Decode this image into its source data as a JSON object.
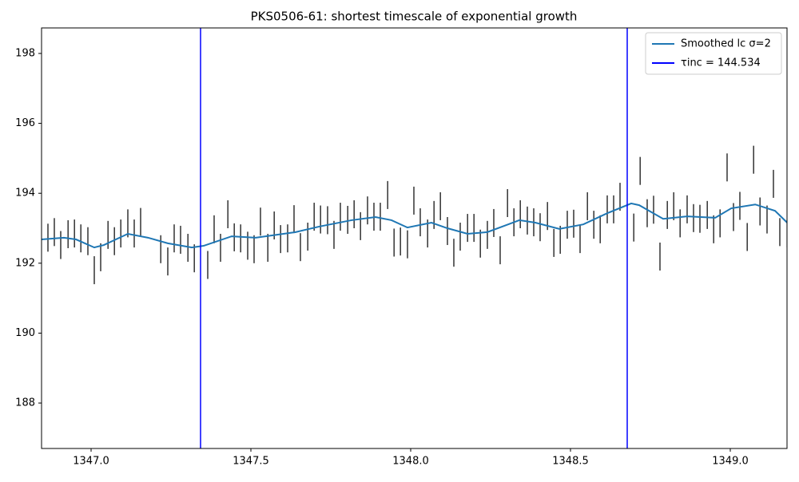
{
  "chart_data": {
    "type": "errorbar",
    "title": "PKS0506-61: shortest timescale of exponential growth",
    "xlim": [
      1346.845,
      1349.1775
    ],
    "ylim": [
      186.7,
      198.73
    ],
    "xticks": [
      {
        "value": 1347,
        "label": "1347.0"
      },
      {
        "value": 1347.5,
        "label": "1347.5"
      },
      {
        "value": 1348,
        "label": "1348.0"
      },
      {
        "value": 1348.5,
        "label": "1348.5"
      },
      {
        "value": 1349,
        "label": "1349.0"
      }
    ],
    "yticks": [
      188,
      190,
      192,
      194,
      196,
      198
    ],
    "legend": "upper right",
    "points": {
      "color": "#333333",
      "yerr": 0.4,
      "x": [
        1346.865,
        1346.885,
        1346.905,
        1346.928,
        1346.948,
        1346.968,
        1346.99,
        1347.01,
        1347.03,
        1347.053,
        1347.073,
        1347.093,
        1347.115,
        1347.135,
        1347.155,
        1347.218,
        1347.24,
        1347.26,
        1347.28,
        1347.303,
        1347.323,
        1347.365,
        1347.385,
        1347.405,
        1347.428,
        1347.448,
        1347.468,
        1347.49,
        1347.51,
        1347.53,
        1347.553,
        1347.573,
        1347.593,
        1347.615,
        1347.635,
        1347.655,
        1347.678,
        1347.698,
        1347.718,
        1347.74,
        1347.76,
        1347.78,
        1347.803,
        1347.823,
        1347.843,
        1347.865,
        1347.885,
        1347.905,
        1347.928,
        1347.948,
        1347.968,
        1347.99,
        1348.01,
        1348.03,
        1348.053,
        1348.073,
        1348.093,
        1348.115,
        1348.135,
        1348.155,
        1348.178,
        1348.198,
        1348.218,
        1348.24,
        1348.26,
        1348.28,
        1348.303,
        1348.323,
        1348.343,
        1348.365,
        1348.385,
        1348.405,
        1348.428,
        1348.448,
        1348.468,
        1348.49,
        1348.51,
        1348.53,
        1348.553,
        1348.573,
        1348.593,
        1348.615,
        1348.635,
        1348.655,
        1348.698,
        1348.718,
        1348.74,
        1348.76,
        1348.78,
        1348.803,
        1348.823,
        1348.843,
        1348.865,
        1348.885,
        1348.905,
        1348.928,
        1348.948,
        1348.968,
        1348.99,
        1349.01,
        1349.03,
        1349.053,
        1349.073,
        1349.093,
        1349.115,
        1349.135,
        1349.155,
        1349.178
      ],
      "values": [
        192.73,
        192.89,
        192.52,
        192.83,
        192.85,
        192.71,
        192.63,
        191.8,
        192.17,
        192.81,
        192.63,
        192.85,
        193.14,
        192.85,
        193.18,
        192.4,
        192.05,
        192.71,
        192.67,
        192.44,
        192.14,
        191.95,
        192.97,
        192.44,
        193.4,
        192.74,
        192.71,
        192.5,
        192.4,
        193.19,
        192.44,
        193.08,
        192.69,
        192.71,
        193.26,
        192.46,
        192.76,
        193.33,
        193.25,
        193.23,
        192.81,
        193.33,
        193.24,
        193.4,
        193.06,
        193.51,
        193.33,
        193.33,
        193.95,
        192.59,
        192.62,
        192.54,
        193.79,
        193.17,
        192.85,
        193.38,
        193.63,
        192.92,
        192.3,
        192.76,
        193.01,
        193.01,
        192.56,
        192.81,
        193.15,
        192.37,
        193.72,
        193.17,
        193.4,
        193.22,
        193.17,
        193.03,
        193.35,
        192.58,
        192.67,
        193.1,
        193.13,
        192.69,
        193.63,
        193.1,
        192.97,
        193.54,
        193.54,
        193.9,
        193.02,
        194.64,
        193.43,
        193.53,
        192.19,
        193.38,
        193.63,
        193.14,
        193.54,
        193.29,
        193.27,
        193.38,
        192.97,
        193.14,
        194.74,
        193.32,
        193.64,
        192.75,
        194.96,
        193.48,
        193.25,
        194.27,
        192.89,
        192.85
      ]
    },
    "series": [
      {
        "name": "Smoothed lc σ=2",
        "color": "#1f77b4",
        "x": [
          1346.845,
          1346.915,
          1346.953,
          1347.01,
          1347.04,
          1347.115,
          1347.178,
          1347.24,
          1347.315,
          1347.353,
          1347.44,
          1347.515,
          1347.64,
          1347.715,
          1347.815,
          1347.89,
          1347.94,
          1347.99,
          1348.065,
          1348.115,
          1348.178,
          1348.24,
          1348.34,
          1348.39,
          1348.465,
          1348.54,
          1348.615,
          1348.69,
          1348.715,
          1348.79,
          1348.865,
          1348.953,
          1349.003,
          1349.078,
          1349.14,
          1349.178
        ],
        "values": [
          192.68,
          192.73,
          192.68,
          192.45,
          192.52,
          192.84,
          192.73,
          192.57,
          192.45,
          192.5,
          192.77,
          192.73,
          192.89,
          193.05,
          193.23,
          193.32,
          193.23,
          193.02,
          193.16,
          193.0,
          192.84,
          192.89,
          193.23,
          193.16,
          192.98,
          193.11,
          193.43,
          193.71,
          193.66,
          193.27,
          193.34,
          193.3,
          193.57,
          193.68,
          193.5,
          193.16
        ]
      }
    ],
    "vlines": {
      "name": "τinc = 144.534",
      "color": "#0000ff",
      "x": [
        1347.3425,
        1348.6775
      ]
    }
  }
}
